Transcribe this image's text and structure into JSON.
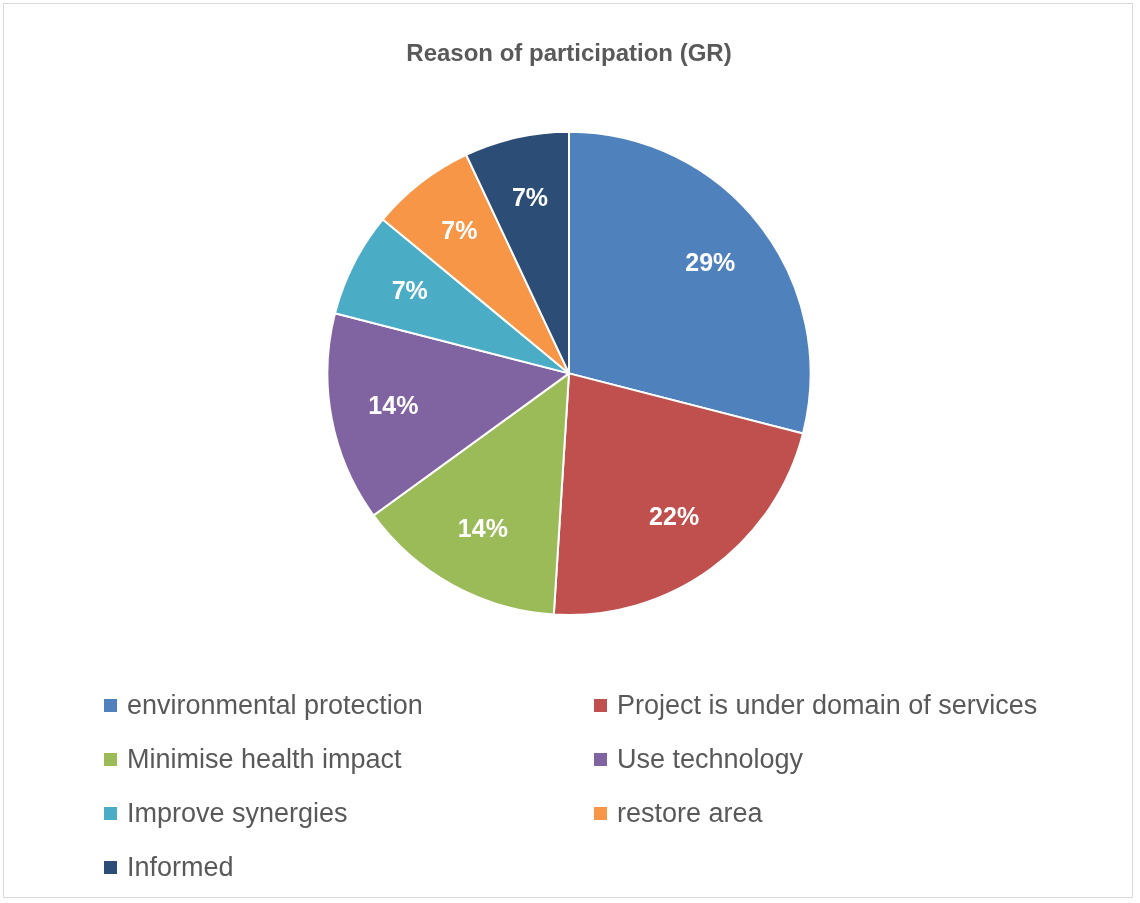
{
  "chart_data": {
    "type": "pie",
    "title": "Reason of participation (GR)",
    "categories": [
      "environmental protection",
      "Project is under domain of services",
      "Minimise health impact",
      "Use technology",
      "Improve synergies",
      "restore area",
      "Informed"
    ],
    "values": [
      29,
      22,
      14,
      14,
      7,
      7,
      7
    ],
    "colors": [
      "#4f81bd",
      "#c0504d",
      "#9bbb59",
      "#8064a2",
      "#4bacc6",
      "#f79646",
      "#2c4d75"
    ],
    "value_labels": [
      "29%",
      "22%",
      "14%",
      "14%",
      "7%",
      "7%",
      "7%"
    ],
    "legend": "bottom"
  }
}
